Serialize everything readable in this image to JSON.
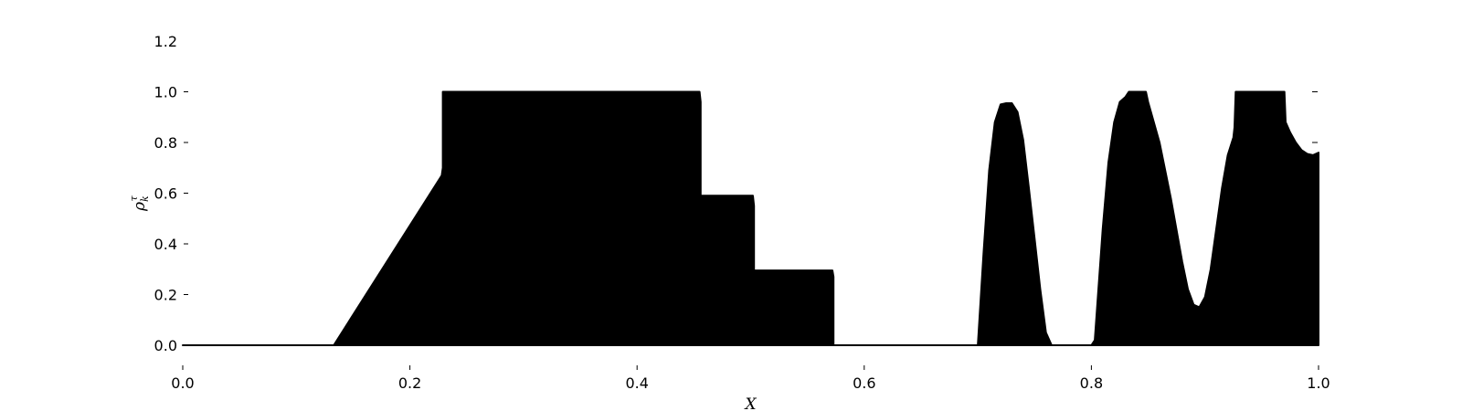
{
  "chart_data": {
    "type": "area",
    "title": "",
    "xlabel": "X",
    "ylabel": "ρ",
    "ylabel_sub": "k",
    "ylabel_sup": "τ",
    "xlim": [
      0.0,
      1.0
    ],
    "ylim": [
      0.0,
      1.2
    ],
    "xticks": [
      "0.0",
      "0.2",
      "0.4",
      "0.6",
      "0.8",
      "1.0"
    ],
    "yticks": [
      "0.0",
      "0.2",
      "0.4",
      "0.6",
      "0.8",
      "1.0",
      "1.2"
    ],
    "grid": false,
    "fill_color": "#000000",
    "series": [
      {
        "x": [
          0.0,
          0.133,
          0.228,
          0.229,
          0.229,
          0.455,
          0.456,
          0.456,
          0.502,
          0.503,
          0.503,
          0.572,
          0.573,
          0.573,
          0.7,
          0.705,
          0.71,
          0.715,
          0.72,
          0.725,
          0.73,
          0.735,
          0.74,
          0.745,
          0.75,
          0.755,
          0.76,
          0.765,
          0.8,
          0.803,
          0.81,
          0.815,
          0.82,
          0.825,
          0.83,
          0.833,
          0.833,
          0.848,
          0.85,
          0.86,
          0.87,
          0.88,
          0.885,
          0.89,
          0.895,
          0.9,
          0.905,
          0.91,
          0.915,
          0.92,
          0.925,
          0.926,
          0.927,
          0.97,
          0.971,
          0.975,
          0.98,
          0.985,
          0.99,
          0.995,
          1.0
        ],
        "y": [
          0.0,
          0.0,
          0.67,
          0.7,
          1.0,
          1.0,
          0.96,
          0.59,
          0.59,
          0.55,
          0.295,
          0.295,
          0.27,
          0.0,
          0.0,
          0.36,
          0.69,
          0.88,
          0.95,
          0.955,
          0.955,
          0.92,
          0.81,
          0.62,
          0.42,
          0.22,
          0.05,
          0.0,
          0.0,
          0.02,
          0.46,
          0.72,
          0.88,
          0.96,
          0.98,
          1.0,
          1.0,
          1.0,
          0.96,
          0.8,
          0.58,
          0.33,
          0.22,
          0.16,
          0.15,
          0.19,
          0.3,
          0.46,
          0.62,
          0.75,
          0.82,
          0.86,
          1.0,
          1.0,
          0.88,
          0.84,
          0.8,
          0.77,
          0.755,
          0.75,
          0.76
        ]
      }
    ]
  }
}
